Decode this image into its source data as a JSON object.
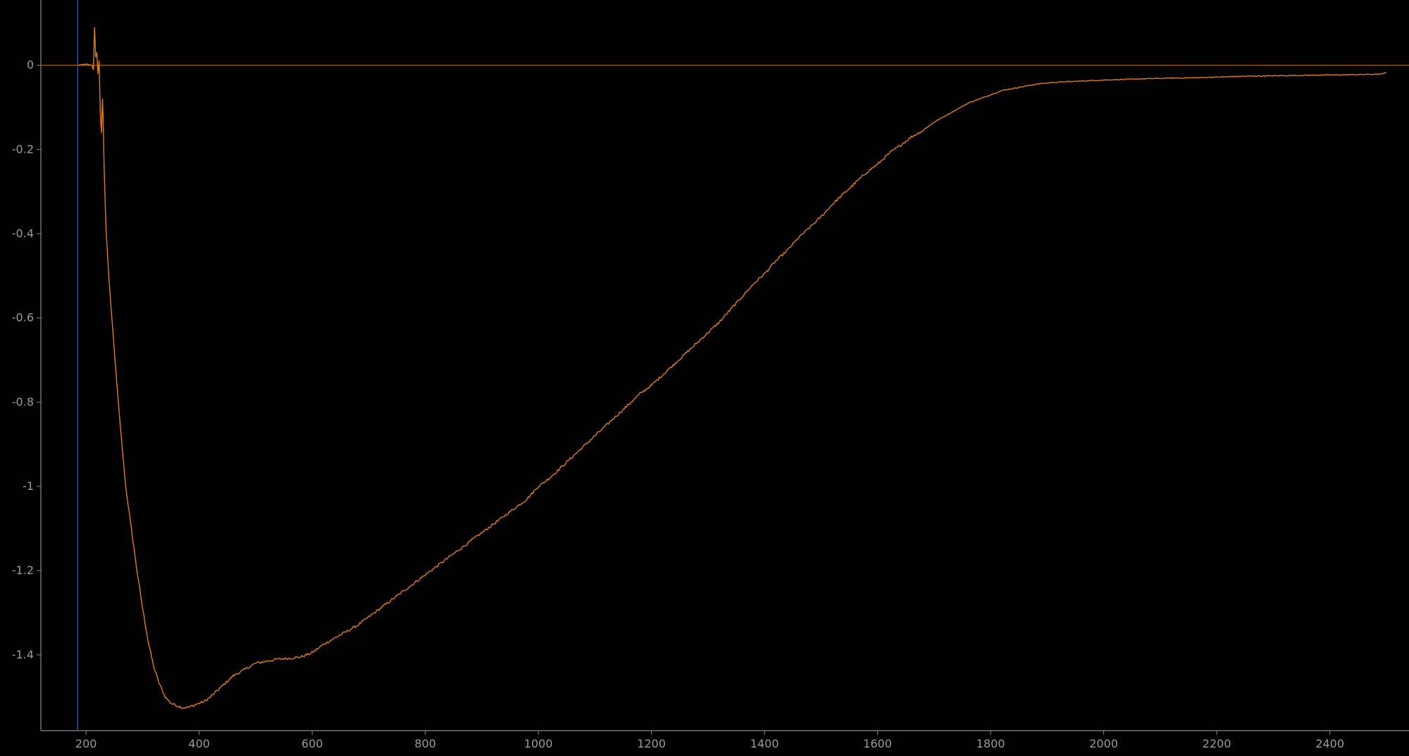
{
  "chart_data": {
    "type": "line",
    "title": "",
    "xlabel": "",
    "ylabel": "",
    "xlim": [
      120,
      2540
    ],
    "ylim": [
      -1.58,
      0.155
    ],
    "xticks": [
      200,
      400,
      600,
      800,
      1000,
      1200,
      1400,
      1600,
      1800,
      2000,
      2200,
      2400
    ],
    "xtick_labels": [
      "200",
      "400",
      "600",
      "800",
      "1000",
      "1200",
      "1400",
      "1600",
      "1800",
      "2000",
      "2200",
      "2400"
    ],
    "yticks": [
      0,
      -0.2,
      -0.4,
      -0.6,
      -0.8,
      -1,
      -1.2,
      -1.4
    ],
    "ytick_labels": [
      "0",
      "-0.2",
      "-0.4",
      "-0.6",
      "-0.8",
      "-1",
      "-1.2",
      "-1.4"
    ],
    "grid": false,
    "reference_lines": [
      {
        "orientation": "horizontal",
        "value": 0,
        "color": "#a0681e"
      },
      {
        "orientation": "vertical",
        "value": 185,
        "color": "#1f4e96"
      }
    ],
    "series": [
      {
        "color": "#e07c18",
        "x": [
          185,
          200,
          210,
          213,
          215,
          217,
          219,
          221,
          223,
          225,
          227,
          229,
          230,
          232,
          235,
          240,
          250,
          260,
          270,
          280,
          290,
          300,
          310,
          320,
          330,
          340,
          350,
          360,
          370,
          380,
          390,
          400,
          410,
          420,
          440,
          460,
          480,
          500,
          520,
          540,
          560,
          580,
          600,
          620,
          640,
          660,
          680,
          700,
          720,
          740,
          760,
          780,
          800,
          820,
          840,
          860,
          880,
          900,
          920,
          940,
          960,
          980,
          1000,
          1020,
          1040,
          1060,
          1080,
          1100,
          1120,
          1140,
          1160,
          1180,
          1200,
          1220,
          1240,
          1260,
          1280,
          1300,
          1320,
          1340,
          1360,
          1380,
          1400,
          1420,
          1440,
          1460,
          1480,
          1500,
          1520,
          1540,
          1560,
          1580,
          1600,
          1620,
          1640,
          1660,
          1680,
          1700,
          1720,
          1740,
          1760,
          1780,
          1800,
          1820,
          1840,
          1860,
          1880,
          1900,
          1920,
          1950,
          2000,
          2050,
          2100,
          2150,
          2200,
          2250,
          2300,
          2350,
          2400,
          2450,
          2490,
          2500
        ],
        "y": [
          0.0,
          0.003,
          0.0,
          -0.01,
          0.09,
          0.02,
          0.03,
          -0.02,
          0.01,
          -0.11,
          -0.16,
          -0.08,
          -0.12,
          -0.25,
          -0.38,
          -0.5,
          -0.68,
          -0.85,
          -1.0,
          -1.1,
          -1.2,
          -1.29,
          -1.37,
          -1.43,
          -1.47,
          -1.5,
          -1.515,
          -1.52,
          -1.525,
          -1.525,
          -1.52,
          -1.515,
          -1.51,
          -1.5,
          -1.475,
          -1.45,
          -1.435,
          -1.42,
          -1.415,
          -1.41,
          -1.408,
          -1.405,
          -1.395,
          -1.375,
          -1.36,
          -1.345,
          -1.33,
          -1.31,
          -1.29,
          -1.27,
          -1.25,
          -1.23,
          -1.21,
          -1.19,
          -1.17,
          -1.15,
          -1.13,
          -1.11,
          -1.09,
          -1.07,
          -1.05,
          -1.03,
          -1.0,
          -0.98,
          -0.955,
          -0.93,
          -0.905,
          -0.88,
          -0.855,
          -0.83,
          -0.805,
          -0.78,
          -0.76,
          -0.735,
          -0.71,
          -0.685,
          -0.66,
          -0.635,
          -0.61,
          -0.58,
          -0.55,
          -0.52,
          -0.495,
          -0.465,
          -0.44,
          -0.41,
          -0.385,
          -0.36,
          -0.33,
          -0.305,
          -0.28,
          -0.255,
          -0.235,
          -0.21,
          -0.19,
          -0.17,
          -0.155,
          -0.135,
          -0.12,
          -0.105,
          -0.09,
          -0.08,
          -0.07,
          -0.06,
          -0.055,
          -0.05,
          -0.045,
          -0.042,
          -0.04,
          -0.038,
          -0.035,
          -0.033,
          -0.031,
          -0.03,
          -0.028,
          -0.026,
          -0.025,
          -0.024,
          -0.023,
          -0.022,
          -0.021,
          -0.017
        ]
      }
    ]
  }
}
